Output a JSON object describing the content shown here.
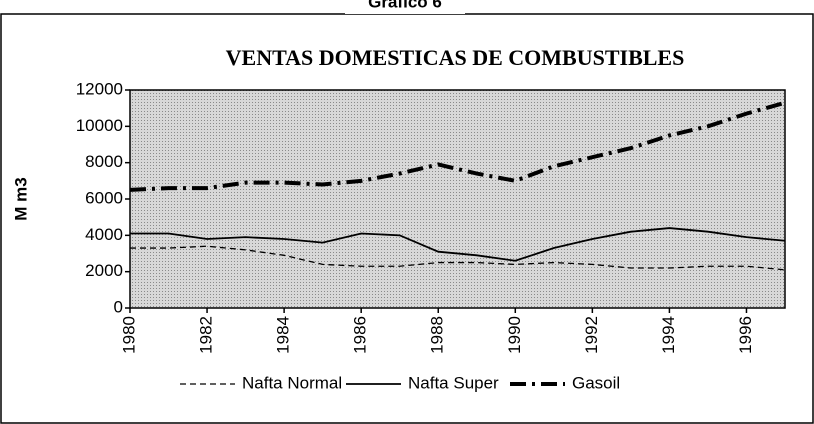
{
  "chart_data": {
    "type": "line",
    "header": "Gráfico 6",
    "title": "VENTAS DOMESTICAS DE COMBUSTIBLES",
    "y_label": "M m3",
    "x": [
      1980,
      1981,
      1982,
      1983,
      1984,
      1985,
      1986,
      1987,
      1988,
      1989,
      1990,
      1991,
      1992,
      1993,
      1994,
      1995,
      1996,
      1997
    ],
    "series": [
      {
        "name": "Nafta Normal",
        "color": "#000000",
        "style": "dashed",
        "values": [
          3300,
          3300,
          3400,
          3200,
          2900,
          2400,
          2300,
          2300,
          2500,
          2500,
          2400,
          2500,
          2400,
          2200,
          2200,
          2300,
          2300,
          2100
        ]
      },
      {
        "name": "Nafta Super",
        "color": "#000000",
        "style": "solid",
        "values": [
          4100,
          4100,
          3800,
          3900,
          3800,
          3600,
          4100,
          4000,
          3100,
          2900,
          2600,
          3300,
          3800,
          4200,
          4400,
          4200,
          3900,
          3700
        ]
      },
      {
        "name": "Gasoil",
        "color": "#000000",
        "style": "dashdot",
        "values": [
          6500,
          6600,
          6600,
          6900,
          6900,
          6800,
          7000,
          7400,
          7900,
          7400,
          7000,
          7800,
          8300,
          8800,
          9500,
          10000,
          10700,
          11300
        ]
      }
    ],
    "xlim": [
      1980,
      1997
    ],
    "xticks": [
      1980,
      1982,
      1984,
      1986,
      1988,
      1990,
      1992,
      1994,
      1996
    ],
    "ylim": [
      0,
      12000
    ],
    "yticks": [
      0,
      2000,
      4000,
      6000,
      8000,
      10000,
      12000
    ],
    "legend": "bottom"
  }
}
